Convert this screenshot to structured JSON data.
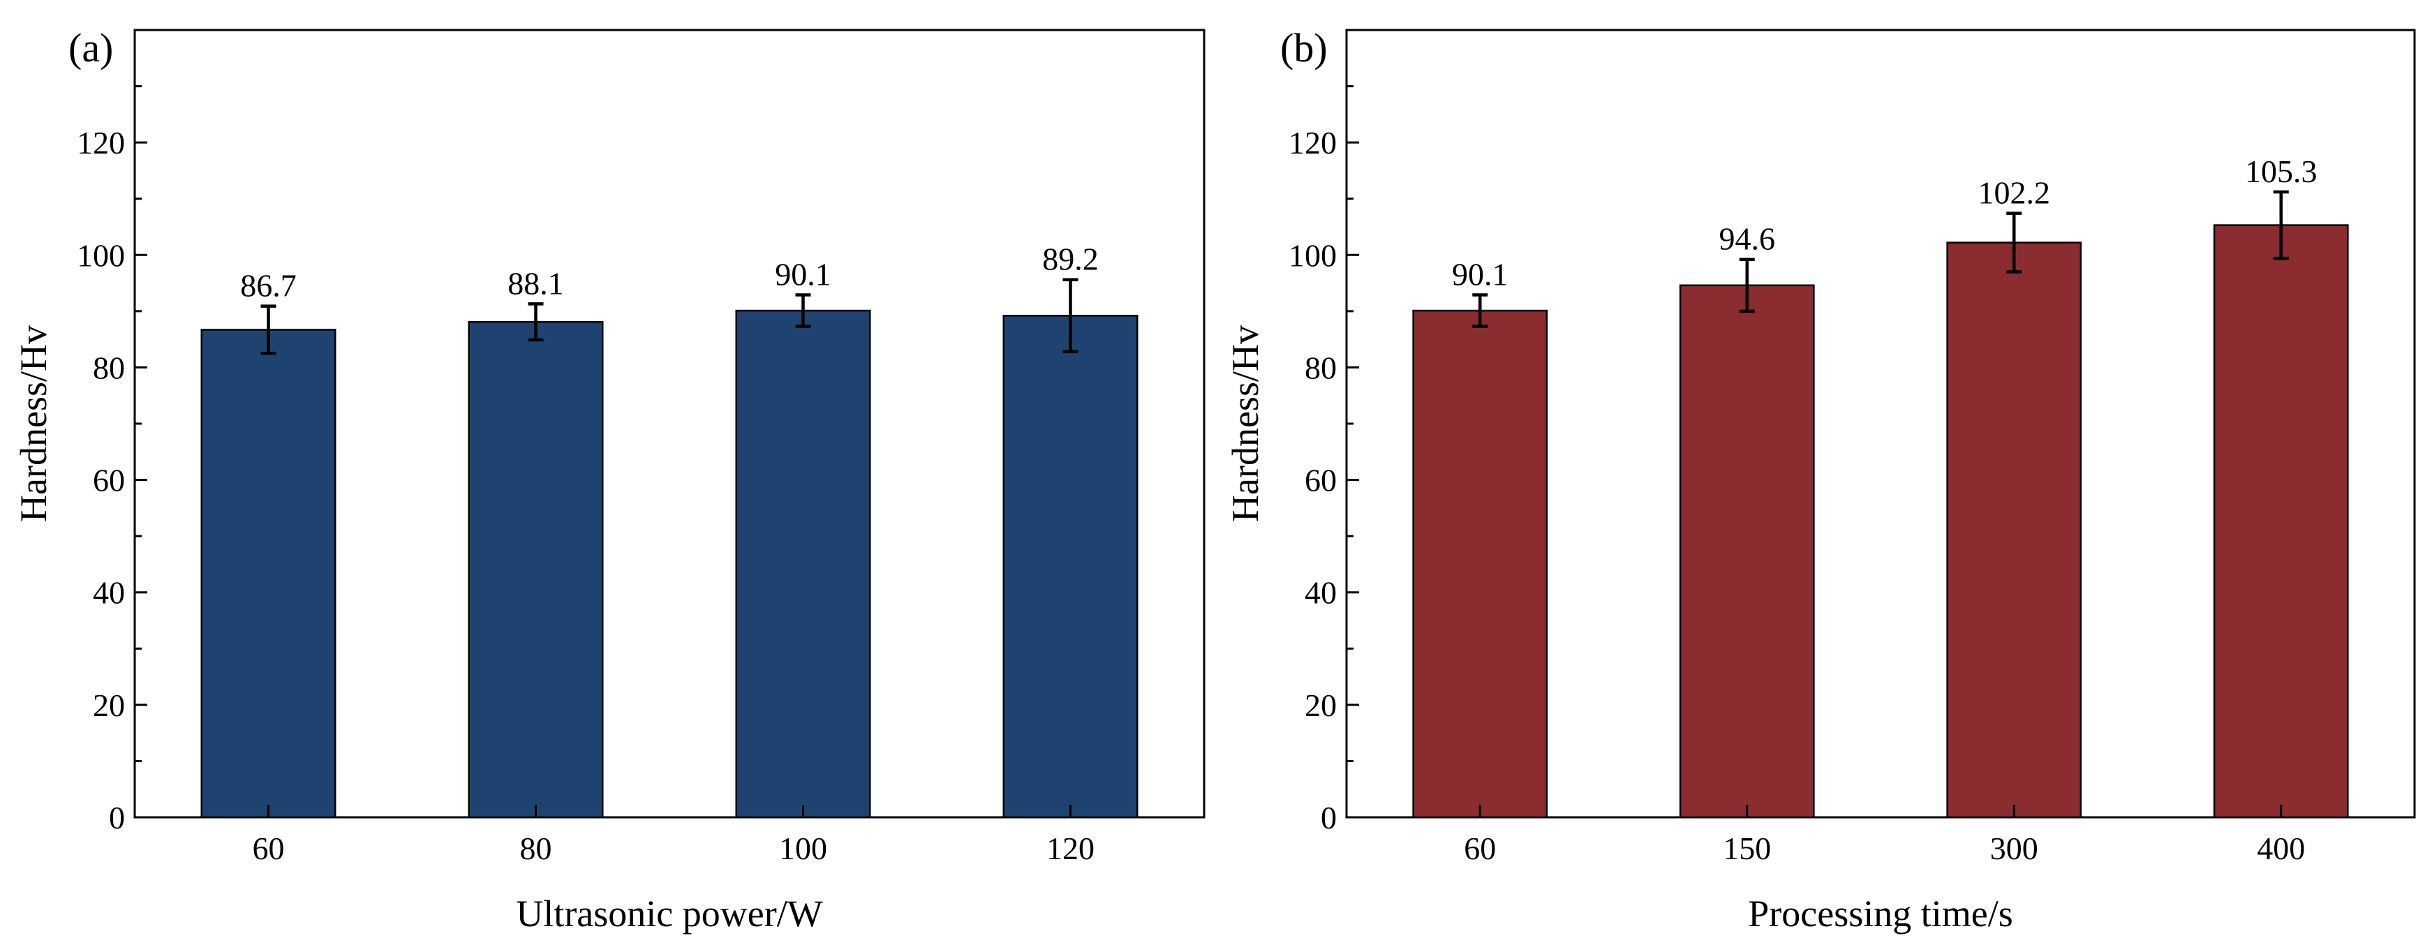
{
  "chart_data": [
    {
      "type": "bar",
      "panel_label": "(a)",
      "title": "",
      "xlabel": "Ultrasonic power/W",
      "ylabel": "Hardness/Hv",
      "categories": [
        "60",
        "80",
        "100",
        "120"
      ],
      "values": [
        86.7,
        88.1,
        90.1,
        89.2
      ],
      "value_labels": [
        "86.7",
        "88.1",
        "90.1",
        "89.2"
      ],
      "errors": [
        4.2,
        3.2,
        2.8,
        6.4
      ],
      "ylim": [
        0,
        140
      ],
      "yticks": [
        0,
        20,
        40,
        60,
        80,
        100,
        120
      ],
      "ytick_labels": [
        "0",
        "20",
        "40",
        "60",
        "80",
        "100",
        "120"
      ],
      "bar_color": "#1f4370",
      "grid": false,
      "legend": "none"
    },
    {
      "type": "bar",
      "panel_label": "(b)",
      "title": "",
      "xlabel": "Processing time/s",
      "ylabel": "Hardness/Hv",
      "categories": [
        "60",
        "150",
        "300",
        "400"
      ],
      "values": [
        90.1,
        94.6,
        102.2,
        105.3
      ],
      "value_labels": [
        "90.1",
        "94.6",
        "102.2",
        "105.3"
      ],
      "errors": [
        2.8,
        4.6,
        5.2,
        5.9
      ],
      "ylim": [
        0,
        140
      ],
      "yticks": [
        0,
        20,
        40,
        60,
        80,
        100,
        120
      ],
      "ytick_labels": [
        "0",
        "20",
        "40",
        "60",
        "80",
        "100",
        "120"
      ],
      "bar_color": "#8b2c30",
      "grid": false,
      "legend": "none"
    }
  ]
}
